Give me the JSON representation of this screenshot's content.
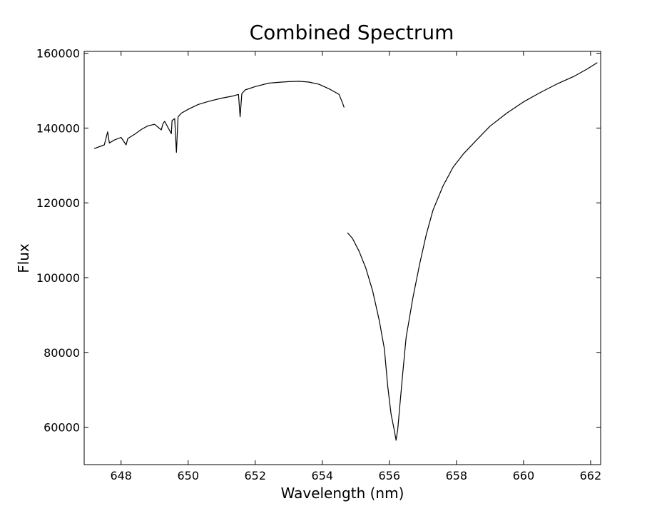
{
  "chart_data": {
    "type": "line",
    "title": "Combined Spectrum",
    "xlabel": "Wavelength (nm)",
    "ylabel": "Flux",
    "xlim": [
      646.9,
      662.3
    ],
    "ylim": [
      50000,
      160500
    ],
    "x_ticks": [
      648,
      650,
      652,
      654,
      656,
      658,
      660,
      662
    ],
    "x_tick_labels": [
      "648",
      "650",
      "652",
      "654",
      "656",
      "658",
      "660",
      "662"
    ],
    "y_ticks": [
      60000,
      80000,
      100000,
      120000,
      140000,
      160000
    ],
    "y_tick_labels": [
      "60000",
      "80000",
      "100000",
      "120000",
      "140000",
      "160000"
    ],
    "grid": false,
    "line_color": "#000000",
    "series": [
      {
        "x": [
          647.2,
          647.5,
          647.6,
          647.65,
          647.8,
          648.0,
          648.15,
          648.2,
          648.4,
          648.6,
          648.8,
          649.0,
          649.2,
          649.25,
          649.3,
          649.5,
          649.52,
          649.6,
          649.65,
          649.7,
          649.8,
          650.0,
          650.3,
          650.6,
          651.0,
          651.3,
          651.5,
          651.55,
          651.6,
          651.7,
          652.0,
          652.4,
          652.8,
          653.0,
          653.3,
          653.6,
          653.9,
          654.2,
          654.4,
          654.5,
          654.6,
          654.65
        ],
        "y": [
          134500,
          135500,
          139000,
          136000,
          136800,
          137500,
          135500,
          137200,
          138300,
          139600,
          140600,
          141000,
          139500,
          141200,
          141800,
          138500,
          142000,
          142500,
          133500,
          143000,
          144000,
          145000,
          146300,
          147100,
          148000,
          148500,
          149000,
          143000,
          149200,
          150200,
          151100,
          152000,
          152300,
          152400,
          152500,
          152300,
          151700,
          150500,
          149500,
          149000,
          146800,
          145500
        ]
      },
      {
        "x": [
          654.75,
          654.9,
          655.1,
          655.3,
          655.5,
          655.7,
          655.85,
          655.95,
          656.05,
          656.15,
          656.2,
          656.25,
          656.3,
          656.4,
          656.5,
          656.7,
          656.9,
          657.1,
          657.3,
          657.6,
          657.9,
          658.2,
          658.6,
          659.0,
          659.5,
          660.0,
          660.5,
          661.0,
          661.5,
          661.9,
          662.2
        ],
        "y": [
          112000,
          110500,
          107000,
          102500,
          96500,
          88500,
          81000,
          71000,
          63500,
          59000,
          56500,
          59500,
          64500,
          74500,
          84000,
          94500,
          103500,
          111500,
          118000,
          124500,
          129500,
          133000,
          136800,
          140500,
          144000,
          147000,
          149500,
          151800,
          153800,
          155800,
          157500
        ]
      }
    ]
  }
}
